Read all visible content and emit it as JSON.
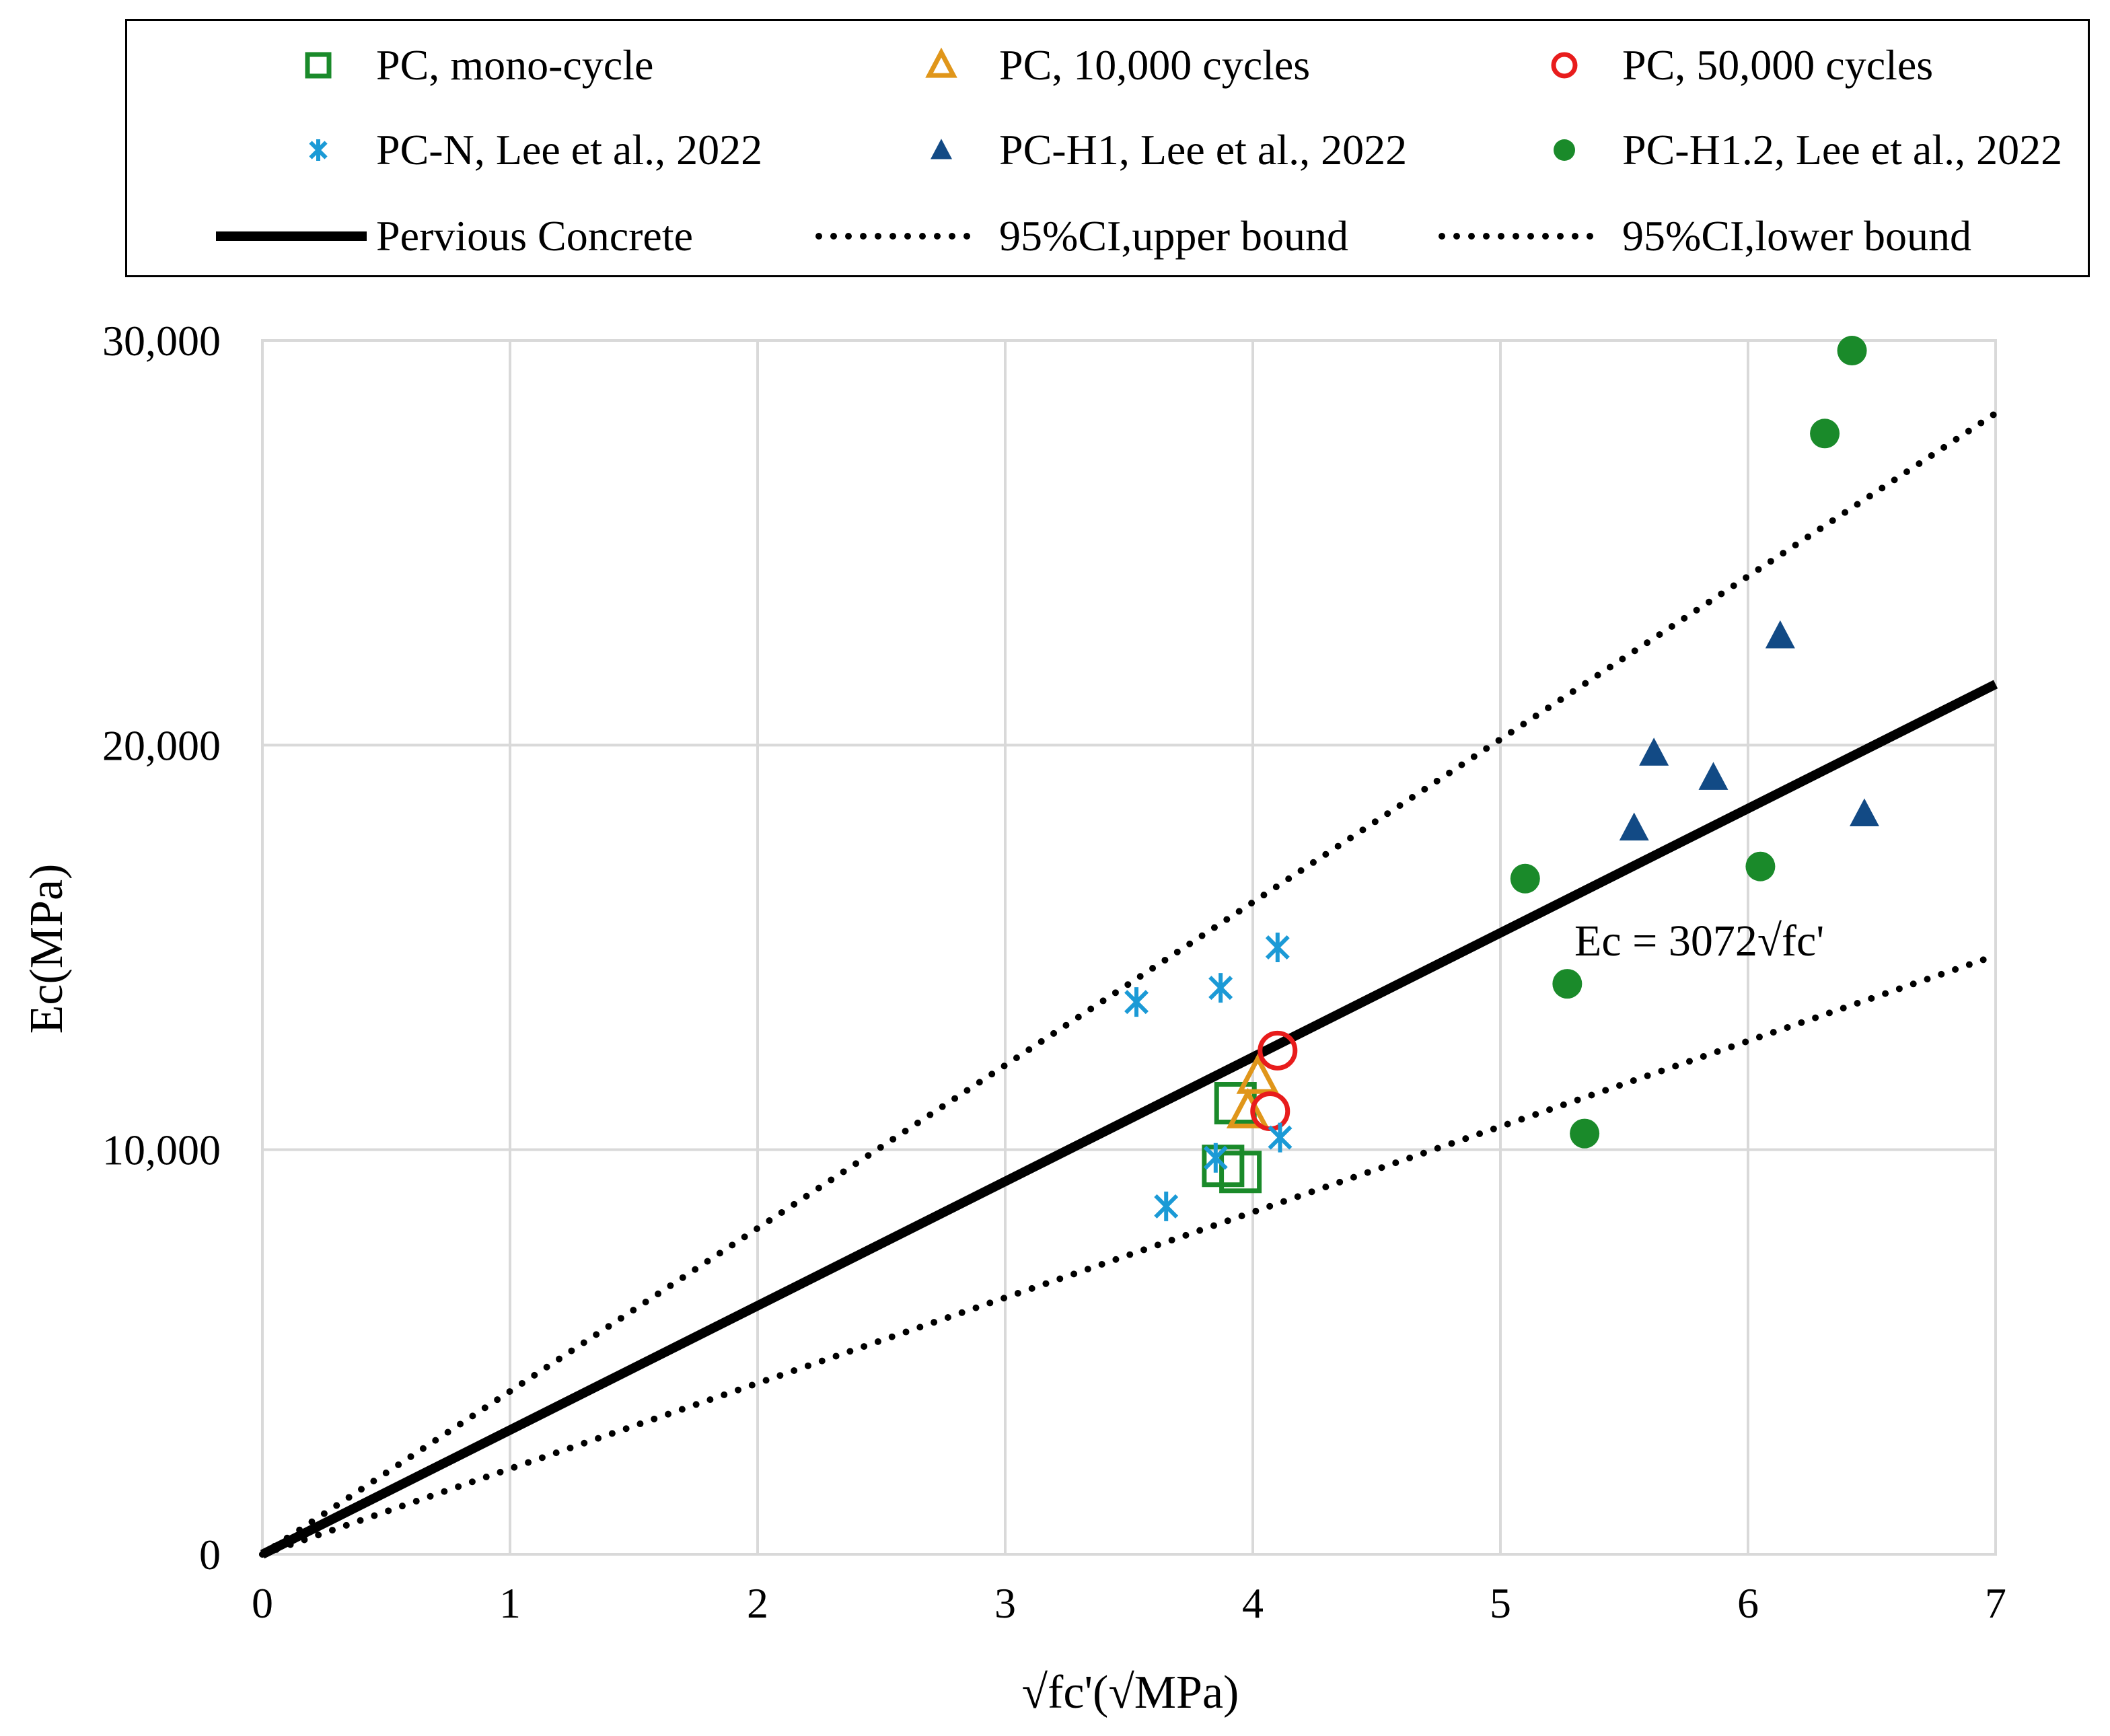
{
  "chart_data": {
    "type": "scatter",
    "title": "",
    "xlabel": "√fc'(√MPa)",
    "ylabel": "Ec(MPa)",
    "xlim": [
      0,
      7
    ],
    "ylim": [
      0,
      30000
    ],
    "x_ticks": [
      0,
      1,
      2,
      3,
      4,
      5,
      6,
      7
    ],
    "y_ticks": [
      0,
      10000,
      20000,
      30000
    ],
    "x_tick_labels": [
      "0",
      "1",
      "2",
      "3",
      "4",
      "5",
      "6",
      "7"
    ],
    "y_tick_labels": [
      "0",
      "10,000",
      "20,000",
      "30,000"
    ],
    "grid": true,
    "legend_position": "top",
    "annotation": "Ec = 3072√fc'",
    "series": [
      {
        "name": "PC, mono-cycle",
        "marker": "square-open",
        "color": "#1a8a2a",
        "points": [
          [
            3.93,
            11150
          ],
          [
            3.88,
            9600
          ],
          [
            3.95,
            9450
          ]
        ]
      },
      {
        "name": "PC, 10,000 cycles",
        "marker": "triangle-open",
        "color": "#e0961a",
        "points": [
          [
            4.02,
            11800
          ],
          [
            3.98,
            10950
          ]
        ]
      },
      {
        "name": "PC, 50,000 cycles",
        "marker": "circle-open",
        "color": "#e81c1c",
        "points": [
          [
            4.1,
            12450
          ],
          [
            4.07,
            10950
          ]
        ]
      },
      {
        "name": "PC-N, Lee et al., 2022",
        "marker": "asterisk",
        "color": "#1b9ad6",
        "points": [
          [
            3.53,
            13650
          ],
          [
            3.87,
            14000
          ],
          [
            4.1,
            15000
          ],
          [
            3.65,
            8600
          ],
          [
            3.85,
            9800
          ],
          [
            4.11,
            10300
          ]
        ]
      },
      {
        "name": "PC-H1, Lee et al., 2022",
        "marker": "triangle-filled",
        "color": "#124a85",
        "points": [
          [
            5.54,
            17950
          ],
          [
            5.62,
            19800
          ],
          [
            5.86,
            19200
          ],
          [
            6.13,
            22700
          ],
          [
            6.47,
            18300
          ]
        ]
      },
      {
        "name": "PC-H1.2, Lee et al., 2022",
        "marker": "circle-filled",
        "color": "#1a8a2a",
        "points": [
          [
            5.1,
            16700
          ],
          [
            5.27,
            14100
          ],
          [
            5.34,
            10400
          ],
          [
            6.05,
            17000
          ],
          [
            6.31,
            27700
          ],
          [
            6.42,
            29750
          ]
        ]
      }
    ],
    "lines": [
      {
        "name": "Pervious Concrete",
        "style": "solid",
        "color": "#000000",
        "points": [
          [
            0,
            0
          ],
          [
            7,
            21504
          ]
        ]
      },
      {
        "name": "95%CI,upper bound",
        "style": "dotted",
        "color": "#000000",
        "points": [
          [
            0,
            0
          ],
          [
            7,
            28200
          ]
        ]
      },
      {
        "name": "95%CI,lower bound",
        "style": "dotted",
        "color": "#000000",
        "points": [
          [
            0,
            0
          ],
          [
            7,
            14800
          ]
        ]
      }
    ]
  }
}
